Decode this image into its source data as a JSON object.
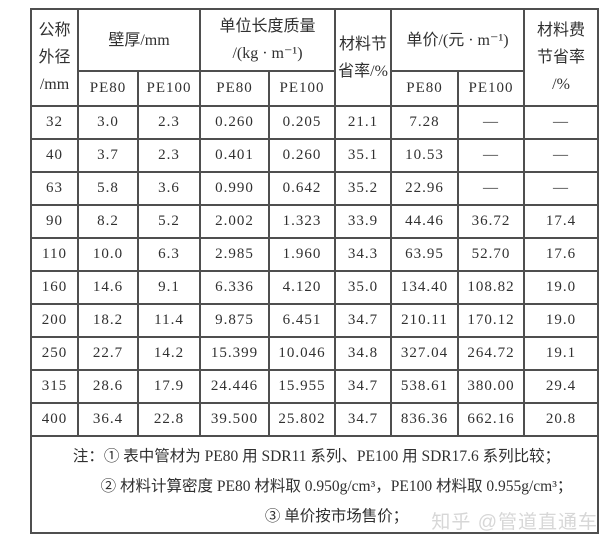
{
  "colors": {
    "background": "#ffffff",
    "border": "#4f4f4f",
    "text": "#303030",
    "watermark": "#d7d7d7"
  },
  "table": {
    "header": {
      "diameter": {
        "line1": "公称",
        "line2": "外径",
        "line3": "/mm"
      },
      "wall": {
        "label": "壁厚/mm"
      },
      "mass": {
        "line1": "单位长度质量",
        "line2": "/(kg · m⁻¹)"
      },
      "material_saving": {
        "line1": "材料节",
        "line2": "省率/%"
      },
      "price": {
        "label": "单价/(元 · m⁻¹)"
      },
      "cost_saving": {
        "line1": "材料费",
        "line2": "节省率",
        "line3": "/%"
      },
      "subheaders": [
        "PE80",
        "PE100",
        "PE80",
        "PE100",
        "PE80",
        "PE100"
      ]
    },
    "rows": [
      [
        "32",
        "3.0",
        "2.3",
        "0.260",
        "0.205",
        "21.1",
        "7.28",
        "—",
        "—"
      ],
      [
        "40",
        "3.7",
        "2.3",
        "0.401",
        "0.260",
        "35.1",
        "10.53",
        "—",
        "—"
      ],
      [
        "63",
        "5.8",
        "3.6",
        "0.990",
        "0.642",
        "35.2",
        "22.96",
        "—",
        "—"
      ],
      [
        "90",
        "8.2",
        "5.2",
        "2.002",
        "1.323",
        "33.9",
        "44.46",
        "36.72",
        "17.4"
      ],
      [
        "110",
        "10.0",
        "6.3",
        "2.985",
        "1.960",
        "34.3",
        "63.95",
        "52.70",
        "17.6"
      ],
      [
        "160",
        "14.6",
        "9.1",
        "6.336",
        "4.120",
        "35.0",
        "134.40",
        "108.82",
        "19.0"
      ],
      [
        "200",
        "18.2",
        "11.4",
        "9.875",
        "6.451",
        "34.7",
        "210.11",
        "170.12",
        "19.0"
      ],
      [
        "250",
        "22.7",
        "14.2",
        "15.399",
        "10.046",
        "34.8",
        "327.04",
        "264.72",
        "19.1"
      ],
      [
        "315",
        "28.6",
        "17.9",
        "24.446",
        "15.955",
        "34.7",
        "538.61",
        "380.00",
        "29.4"
      ],
      [
        "400",
        "36.4",
        "22.8",
        "39.500",
        "25.802",
        "34.7",
        "836.36",
        "662.16",
        "20.8"
      ]
    ],
    "notes": [
      "注：① 表中管材为 PE80 用 SDR11 系列、PE100 用 SDR17.6 系列比较；",
      "② 材料计算密度 PE80 材料取 0.950g/cm³，PE100 材料取 0.955g/cm³；",
      "③ 单价按市场售价；"
    ],
    "watermark": "知乎 @管道直通车"
  }
}
